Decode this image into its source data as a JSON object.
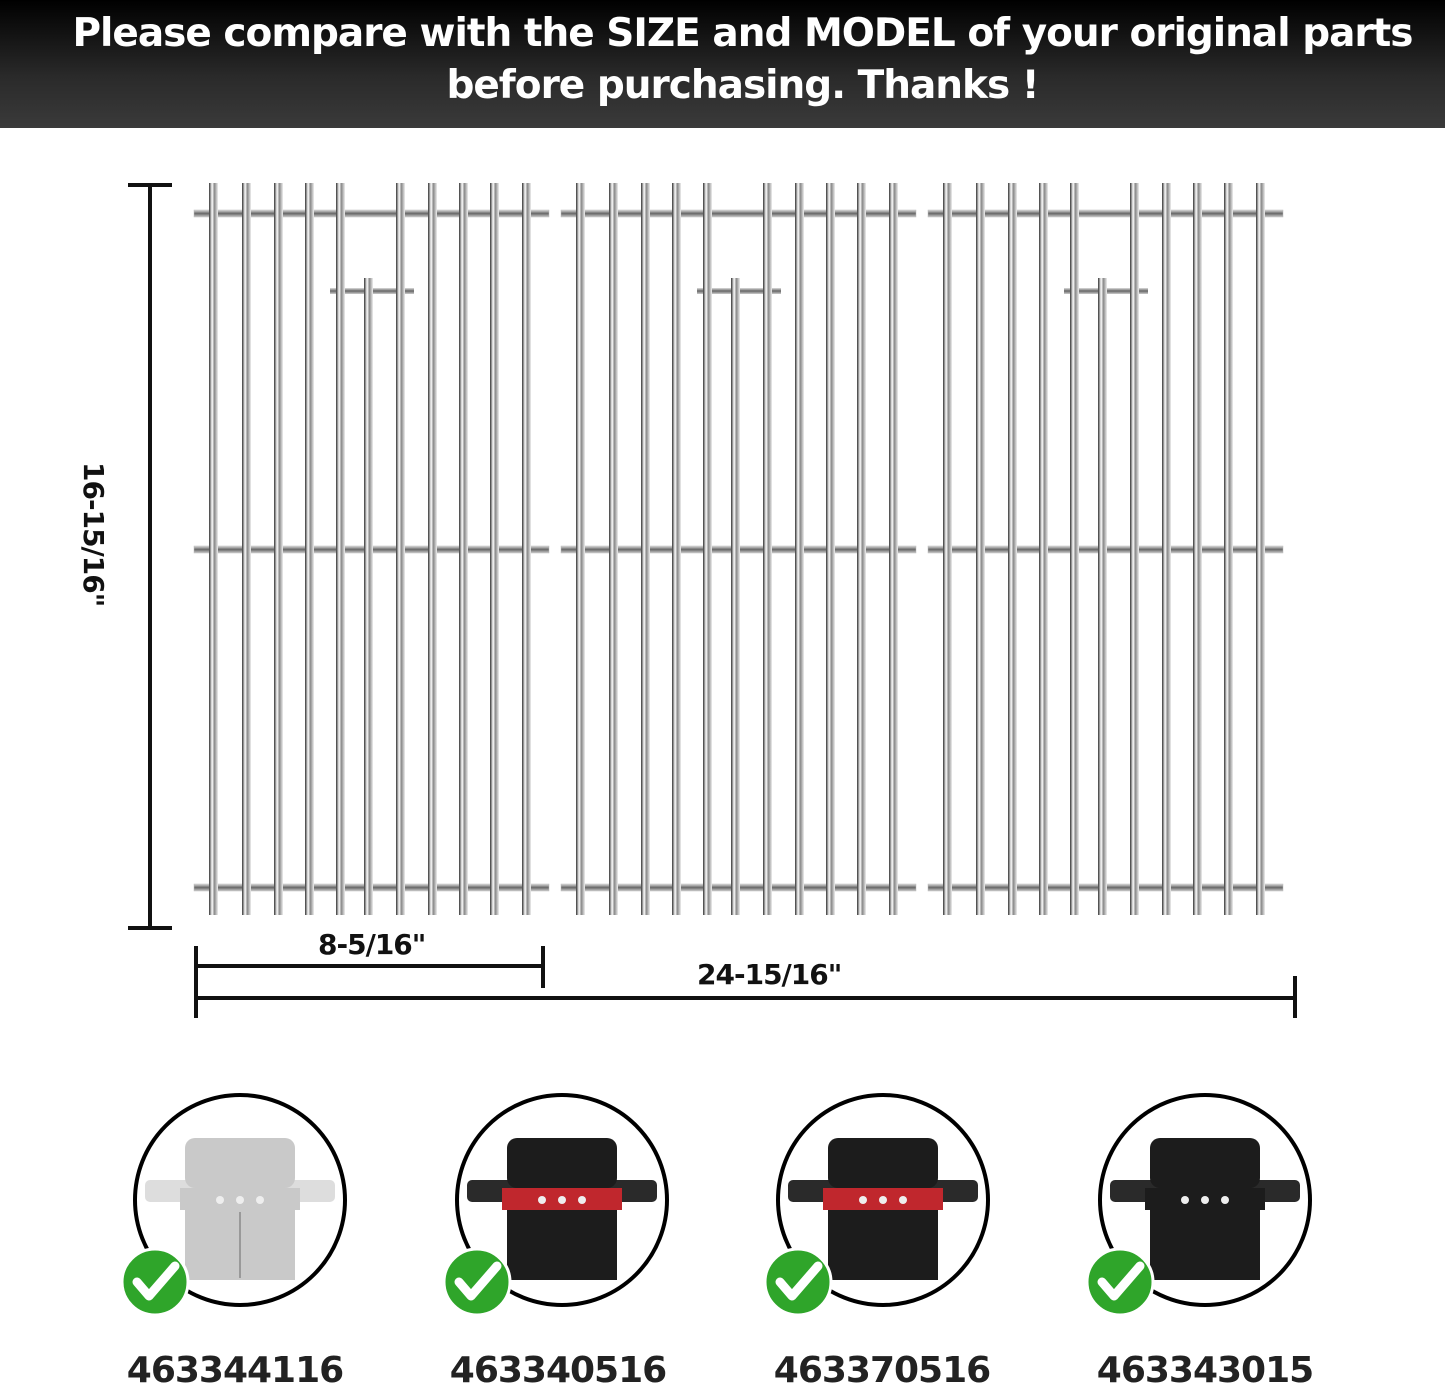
{
  "header": {
    "line1": "Please compare with the SIZE and MODEL of your original parts",
    "line2": "before purchasing. Thanks !"
  },
  "dimensions": {
    "height": "16-15/16\"",
    "single_width": "8-5/16\"",
    "total_width": "24-15/16\""
  },
  "grates_count": 3,
  "models": [
    {
      "number": "463344116",
      "grill_color": "stainless",
      "icon": "check-icon"
    },
    {
      "number": "463340516",
      "grill_color": "black-red",
      "icon": "check-icon"
    },
    {
      "number": "463370516",
      "grill_color": "black-red",
      "icon": "check-icon"
    },
    {
      "number": "463343015",
      "grill_color": "black",
      "icon": "check-icon"
    }
  ],
  "colors": {
    "check_green": "#2fa52a",
    "header_bg": "#111111"
  }
}
